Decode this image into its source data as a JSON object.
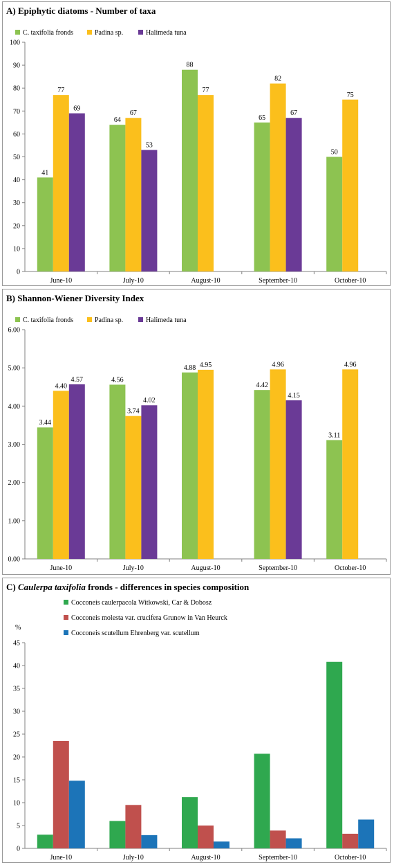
{
  "colors": {
    "green": "#8dc351",
    "yellow": "#fbbf1c",
    "purple": "#6a3a96",
    "c_green": "#2fa84f",
    "c_red": "#c0504d",
    "c_blue": "#1c74b8"
  },
  "chart_data": [
    {
      "type": "bar",
      "title_letter": "A)",
      "title": "Epiphytic diatoms - Number of taxa",
      "categories": [
        "June-10",
        "July-10",
        "August-10",
        "September-10",
        "October-10"
      ],
      "ylim": [
        0,
        100
      ],
      "yticks": [
        "0",
        "10",
        "20",
        "30",
        "40",
        "50",
        "60",
        "70",
        "80",
        "90",
        "100"
      ],
      "legend_position": "top-left",
      "series": [
        {
          "name": "C. taxifolia fronds",
          "color": "#8dc351",
          "values": [
            41,
            64,
            88,
            65,
            50
          ],
          "labels": [
            "41",
            "64",
            "88",
            "65",
            "50"
          ]
        },
        {
          "name": "Padina sp.",
          "color": "#fbbf1c",
          "values": [
            77,
            67,
            77,
            82,
            75
          ],
          "labels": [
            "77",
            "67",
            "77",
            "82",
            "75"
          ]
        },
        {
          "name": "Halimeda tuna",
          "color": "#6a3a96",
          "values": [
            69,
            53,
            null,
            67,
            null
          ],
          "labels": [
            "69",
            "53",
            "",
            "67",
            ""
          ]
        }
      ]
    },
    {
      "type": "bar",
      "title_letter": "B)",
      "title": "Shannon-Wiener Diversity Index",
      "categories": [
        "June-10",
        "July-10",
        "August-10",
        "September-10",
        "October-10"
      ],
      "ylim": [
        0,
        6
      ],
      "yticks": [
        "0.00",
        "1.00",
        "2.00",
        "3.00",
        "4.00",
        "5.00",
        "6.00"
      ],
      "legend_position": "top-left",
      "series": [
        {
          "name": "C. taxifolia fronds",
          "color": "#8dc351",
          "values": [
            3.44,
            4.56,
            4.88,
            4.42,
            3.11
          ],
          "labels": [
            "3.44",
            "4.56",
            "4.88",
            "4.42",
            "3.11"
          ]
        },
        {
          "name": "Padina sp.",
          "color": "#fbbf1c",
          "values": [
            4.4,
            3.74,
            4.95,
            4.96,
            4.96
          ],
          "labels": [
            "4.40",
            "3.74",
            "4.95",
            "4.96",
            "4.96"
          ]
        },
        {
          "name": "Halimeda tuna",
          "color": "#6a3a96",
          "values": [
            4.57,
            4.02,
            null,
            4.15,
            null
          ],
          "labels": [
            "4.57",
            "4.02",
            "",
            "4.15",
            ""
          ]
        }
      ]
    },
    {
      "type": "bar",
      "title_letter": "C)",
      "title_italic": "Caulerpa taxifolia",
      "title": " fronds - differences in species composition",
      "ylabel": "%",
      "categories": [
        "June-10",
        "July-10",
        "August-10",
        "September-10",
        "October-10"
      ],
      "ylim": [
        0,
        45
      ],
      "yticks": [
        "0",
        "5",
        "10",
        "15",
        "20",
        "25",
        "30",
        "35",
        "40",
        "45"
      ],
      "legend_position": "top-left",
      "series": [
        {
          "name": "Cocconeis caulerpacola Witkowski, Car & Dobosz",
          "color": "#2fa84f",
          "values": [
            3.0,
            6.0,
            11.2,
            20.7,
            40.8
          ]
        },
        {
          "name": "Cocconeis molesta var. crucifera Grunow in Van Heurck",
          "color": "#c0504d",
          "values": [
            23.5,
            9.5,
            5.0,
            3.9,
            3.2
          ]
        },
        {
          "name": "Cocconeis scutellum Ehrenberg var. scutellum",
          "color": "#1c74b8",
          "values": [
            14.8,
            2.9,
            1.5,
            2.2,
            6.3
          ]
        }
      ]
    }
  ]
}
